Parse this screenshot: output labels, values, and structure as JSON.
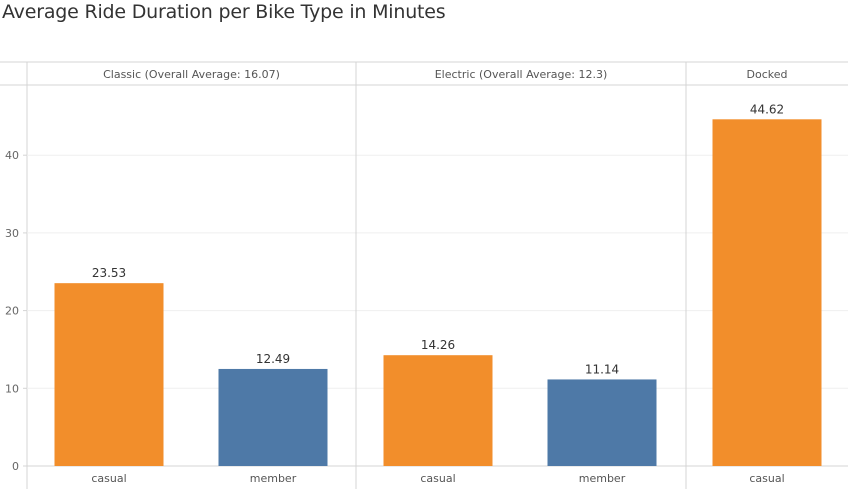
{
  "chart_data": {
    "type": "bar",
    "title": "Average Ride Duration per Bike Type  in Minutes",
    "panels": [
      {
        "header": "Classic (Overall Average: 16.07)",
        "categories": [
          "casual",
          "member"
        ],
        "values": [
          23.53,
          12.49
        ]
      },
      {
        "header": "Electric (Overall Average: 12.3)",
        "categories": [
          "casual",
          "member"
        ],
        "values": [
          14.26,
          11.14
        ]
      },
      {
        "header": "Docked",
        "categories": [
          "casual"
        ],
        "values": [
          44.62
        ]
      }
    ],
    "yticks": [
      0,
      10,
      20,
      30,
      40
    ],
    "ylim": [
      0,
      47
    ],
    "grid": true,
    "legend": "none"
  },
  "colors": {
    "casual": "#f28e2b",
    "member": "#4e79a7"
  }
}
